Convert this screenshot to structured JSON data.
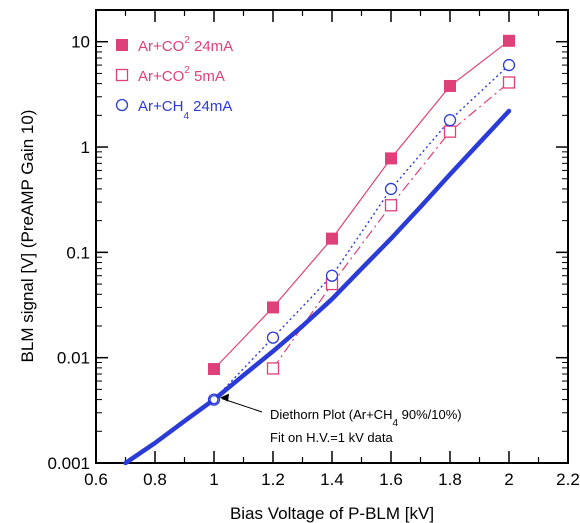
{
  "chart_data": {
    "type": "line",
    "title": "",
    "xlabel": "Bias Voltage of P-BLM [kV]",
    "ylabel": "BLM signal [V] (PreAMP Gain 10)",
    "xlim": [
      0.6,
      2.2
    ],
    "ylim": [
      0.001,
      20
    ],
    "yscale": "log",
    "x_ticks": [
      0.6,
      0.8,
      1,
      1.2,
      1.4,
      1.6,
      1.8,
      2,
      2.2
    ],
    "x_tick_labels": [
      "0.6",
      "0.8",
      "1",
      "1.2",
      "1.4",
      "1.6",
      "1.8",
      "2",
      "2.2"
    ],
    "y_ticks": [
      0.001,
      0.01,
      0.1,
      1,
      10
    ],
    "y_tick_labels": [
      "0.001",
      "0.01",
      "0.1",
      "1",
      "10"
    ],
    "grid": false,
    "legend_position": "top-left",
    "series": [
      {
        "name_parts": [
          "Ar+CO",
          "2",
          " 24mA"
        ],
        "marker": "filled-square",
        "line": "solid",
        "color": "#e0407a",
        "x": [
          1.0,
          1.2,
          1.4,
          1.6,
          1.8,
          2.0
        ],
        "y": [
          0.0078,
          0.03,
          0.135,
          0.78,
          3.8,
          10.2
        ]
      },
      {
        "name_parts": [
          "Ar+CO",
          "2",
          " 5mA"
        ],
        "marker": "open-square",
        "line": "dash-dot",
        "color": "#e0407a",
        "x": [
          1.2,
          1.4,
          1.6,
          1.8,
          2.0
        ],
        "y": [
          0.0079,
          0.05,
          0.28,
          1.4,
          4.1
        ]
      },
      {
        "name_parts": [
          "Ar+CH",
          "4",
          " 24mA"
        ],
        "marker": "open-circle",
        "line": "dotted",
        "color": "#2a3bd6",
        "x": [
          1.0,
          1.2,
          1.4,
          1.6,
          1.8,
          2.0
        ],
        "y": [
          0.004,
          0.0155,
          0.06,
          0.4,
          1.8,
          6.0
        ]
      },
      {
        "name_parts": [
          "Diethorn Plot (Ar+CH",
          "4",
          " 90%/10%)"
        ],
        "marker": "none",
        "line": "thick-solid",
        "color": "#2a3bd6",
        "x": [
          0.7,
          0.8,
          0.9,
          1.0,
          1.1,
          1.2,
          1.3,
          1.4,
          1.5,
          1.6,
          1.7,
          1.8,
          1.9,
          2.0
        ],
        "y": [
          0.001,
          0.00155,
          0.0025,
          0.004,
          0.0068,
          0.0115,
          0.02,
          0.036,
          0.07,
          0.135,
          0.27,
          0.55,
          1.1,
          2.2
        ]
      }
    ],
    "annotations": {
      "fit_point": {
        "x": 1.0,
        "y": 0.004
      },
      "diethorn_parts": [
        "Diethorn Plot (Ar+CH",
        "4",
        " 90%/10%)"
      ],
      "fit_note": "Fit on H.V.=1 kV data"
    }
  }
}
